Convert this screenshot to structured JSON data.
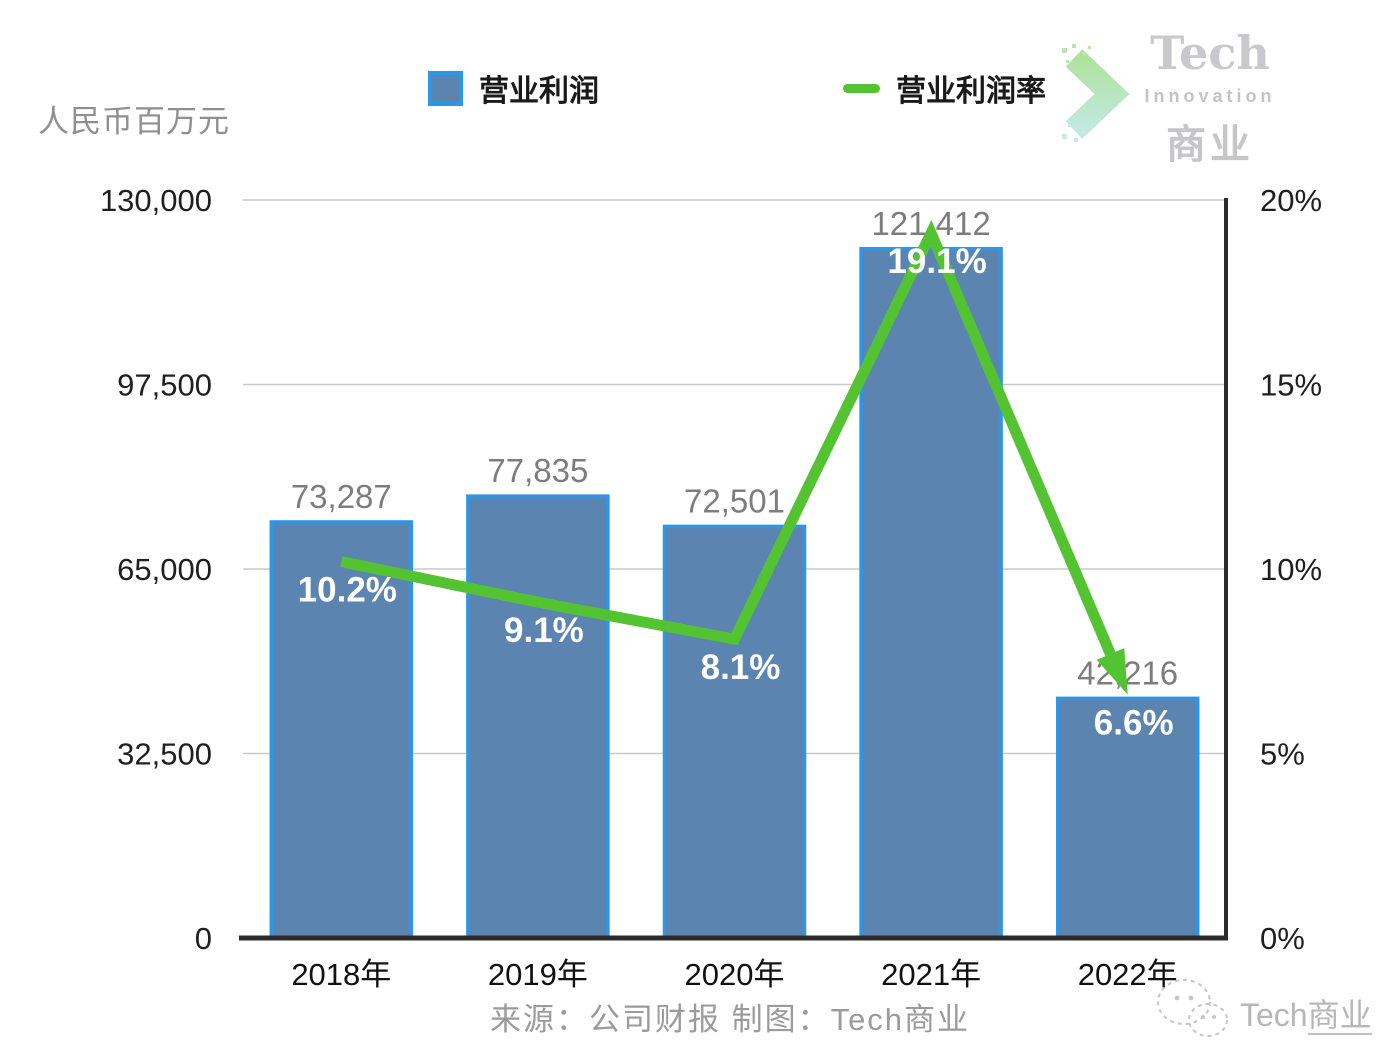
{
  "unit_label": "人民币百万元",
  "legend": {
    "bar_label": "营业利润",
    "line_label": "营业利润率"
  },
  "logo": {
    "line1": "Tech",
    "line2": "Innovation",
    "line3": "商业"
  },
  "footer": {
    "source": "来源：公司财报 制图：Tech商业"
  },
  "bottom_watermark": {
    "text_plain": "Tech",
    "text_underlined": "商业"
  },
  "colors": {
    "bar_fill": "#5B84B1",
    "bar_stroke": "#2E96E8",
    "line": "#53C332",
    "grid": "#c9c9c9",
    "axis": "#2b2b2b",
    "value_label": "#7d7d7d",
    "pct_label": "#ffffff",
    "tick_label": "#1f1f1f",
    "category_label": "#111111"
  },
  "chart_data": {
    "type": "bar",
    "title": "",
    "categories": [
      "2018年",
      "2019年",
      "2020年",
      "2021年",
      "2022年"
    ],
    "series": [
      {
        "name": "营业利润",
        "type": "bar",
        "values": [
          73287,
          77835,
          72501,
          121412,
          42216
        ],
        "labels": [
          "73,287",
          "77,835",
          "72,501",
          "121,412",
          "42,216"
        ]
      },
      {
        "name": "营业利润率",
        "type": "line",
        "values": [
          10.2,
          9.1,
          8.1,
          19.1,
          6.6
        ],
        "labels": [
          "10.2%",
          "9.1%",
          "8.1%",
          "19.1%",
          "6.6%"
        ]
      }
    ],
    "ylabel": "人民币百万元",
    "left_axis": {
      "min": 0,
      "max": 130000,
      "ticks": [
        "130,000",
        "97,500",
        "65,000",
        "32,500",
        "0"
      ]
    },
    "right_axis": {
      "min": 0,
      "max": 20,
      "ticks": [
        "20%",
        "15%",
        "10%",
        "5%",
        "0%"
      ]
    },
    "grid": true,
    "legend_position": "top"
  }
}
